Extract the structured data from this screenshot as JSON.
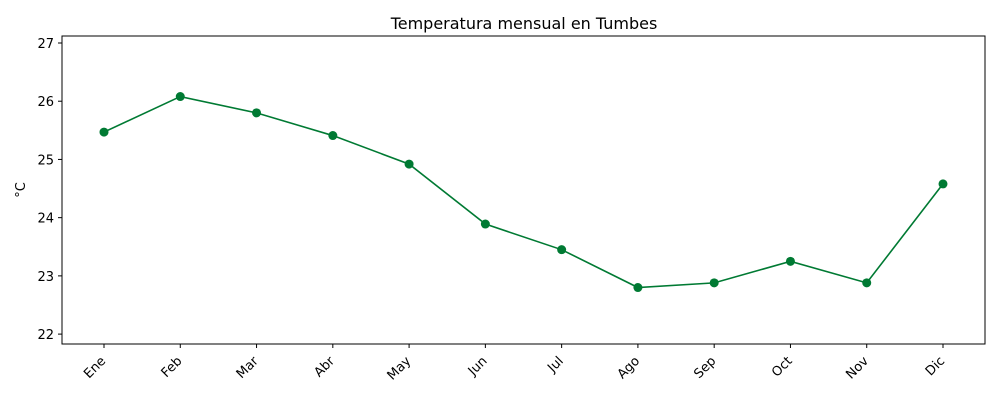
{
  "chart_data": {
    "type": "line",
    "title": "Temperatura mensual en Tumbes",
    "xlabel": "",
    "ylabel": "°C",
    "categories": [
      "Ene",
      "Feb",
      "Mar",
      "Abr",
      "May",
      "Jun",
      "Jul",
      "Ago",
      "Sep",
      "Oct",
      "Nov",
      "Dic"
    ],
    "series": [
      {
        "values": [
          25.47,
          26.08,
          25.8,
          25.41,
          24.92,
          23.89,
          23.45,
          22.8,
          22.88,
          23.25,
          22.88,
          24.58
        ],
        "color": "#007a33",
        "marker": "circle"
      }
    ],
    "ylim": [
      21.83,
      27.12
    ],
    "yticks": [
      22,
      23,
      24,
      25,
      26,
      27
    ],
    "grid": false,
    "legend": "none"
  }
}
